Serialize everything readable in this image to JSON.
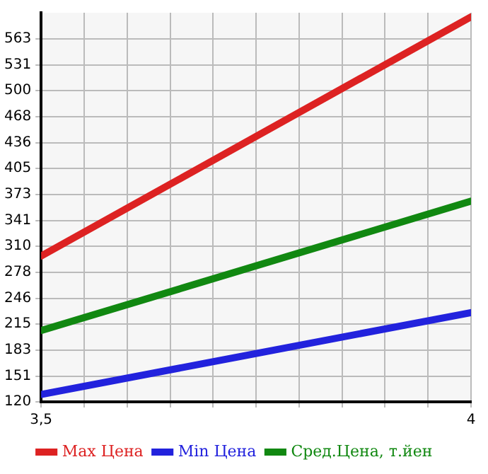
{
  "chart_data": {
    "type": "line",
    "x": [
      3.5,
      4
    ],
    "series": [
      {
        "name": "Max Цена",
        "color": "#dd2222",
        "values": [
          298,
          590
        ]
      },
      {
        "name": "Min Цена",
        "color": "#2222dd",
        "values": [
          129,
          229
        ]
      },
      {
        "name": "Сред.Цена, т.йен",
        "color": "#118811",
        "values": [
          207,
          365
        ]
      }
    ],
    "xlim": [
      3.5,
      4
    ],
    "xticks": [
      {
        "value": 3.5,
        "label": "3,5"
      },
      {
        "value": 3.55,
        "label": null
      },
      {
        "value": 3.6,
        "label": null
      },
      {
        "value": 3.65,
        "label": null
      },
      {
        "value": 3.7,
        "label": null
      },
      {
        "value": 3.75,
        "label": null
      },
      {
        "value": 3.8,
        "label": null
      },
      {
        "value": 3.85,
        "label": null
      },
      {
        "value": 3.9,
        "label": null
      },
      {
        "value": 3.95,
        "label": null
      },
      {
        "value": 4,
        "label": "4"
      }
    ],
    "ylim": [
      120,
      595
    ],
    "yticks": [
      120,
      151,
      183,
      215,
      246,
      278,
      310,
      341,
      373,
      405,
      436,
      468,
      500,
      531,
      563
    ],
    "grid": true,
    "legend": "bottom",
    "marker": "none",
    "line_style": "solid"
  }
}
